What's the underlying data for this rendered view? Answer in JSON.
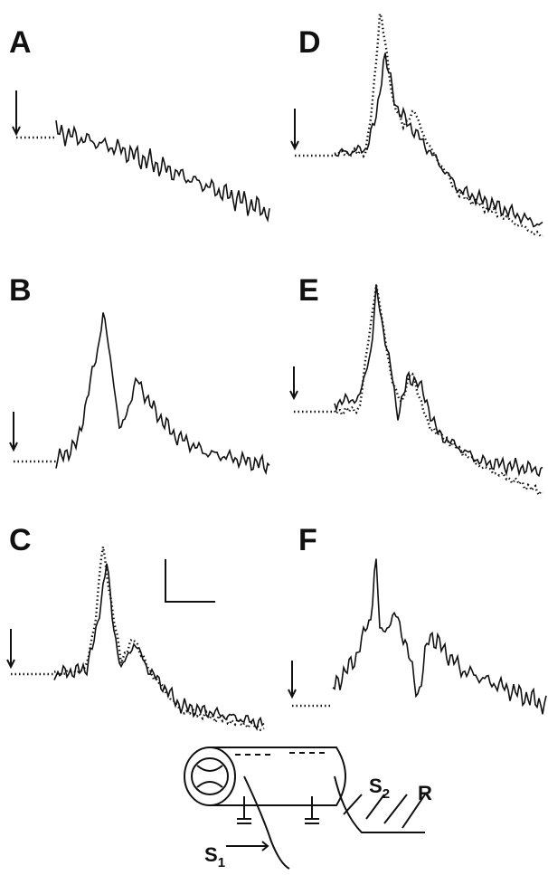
{
  "panels": [
    {
      "label": "A"
    },
    {
      "label": "B"
    },
    {
      "label": "C"
    },
    {
      "label": "D"
    },
    {
      "label": "E"
    },
    {
      "label": "F"
    }
  ],
  "diagram": {
    "labels": [
      {
        "text": "S",
        "sub": "1"
      },
      {
        "text": "S",
        "sub": "2"
      },
      {
        "text": "R"
      }
    ]
  }
}
